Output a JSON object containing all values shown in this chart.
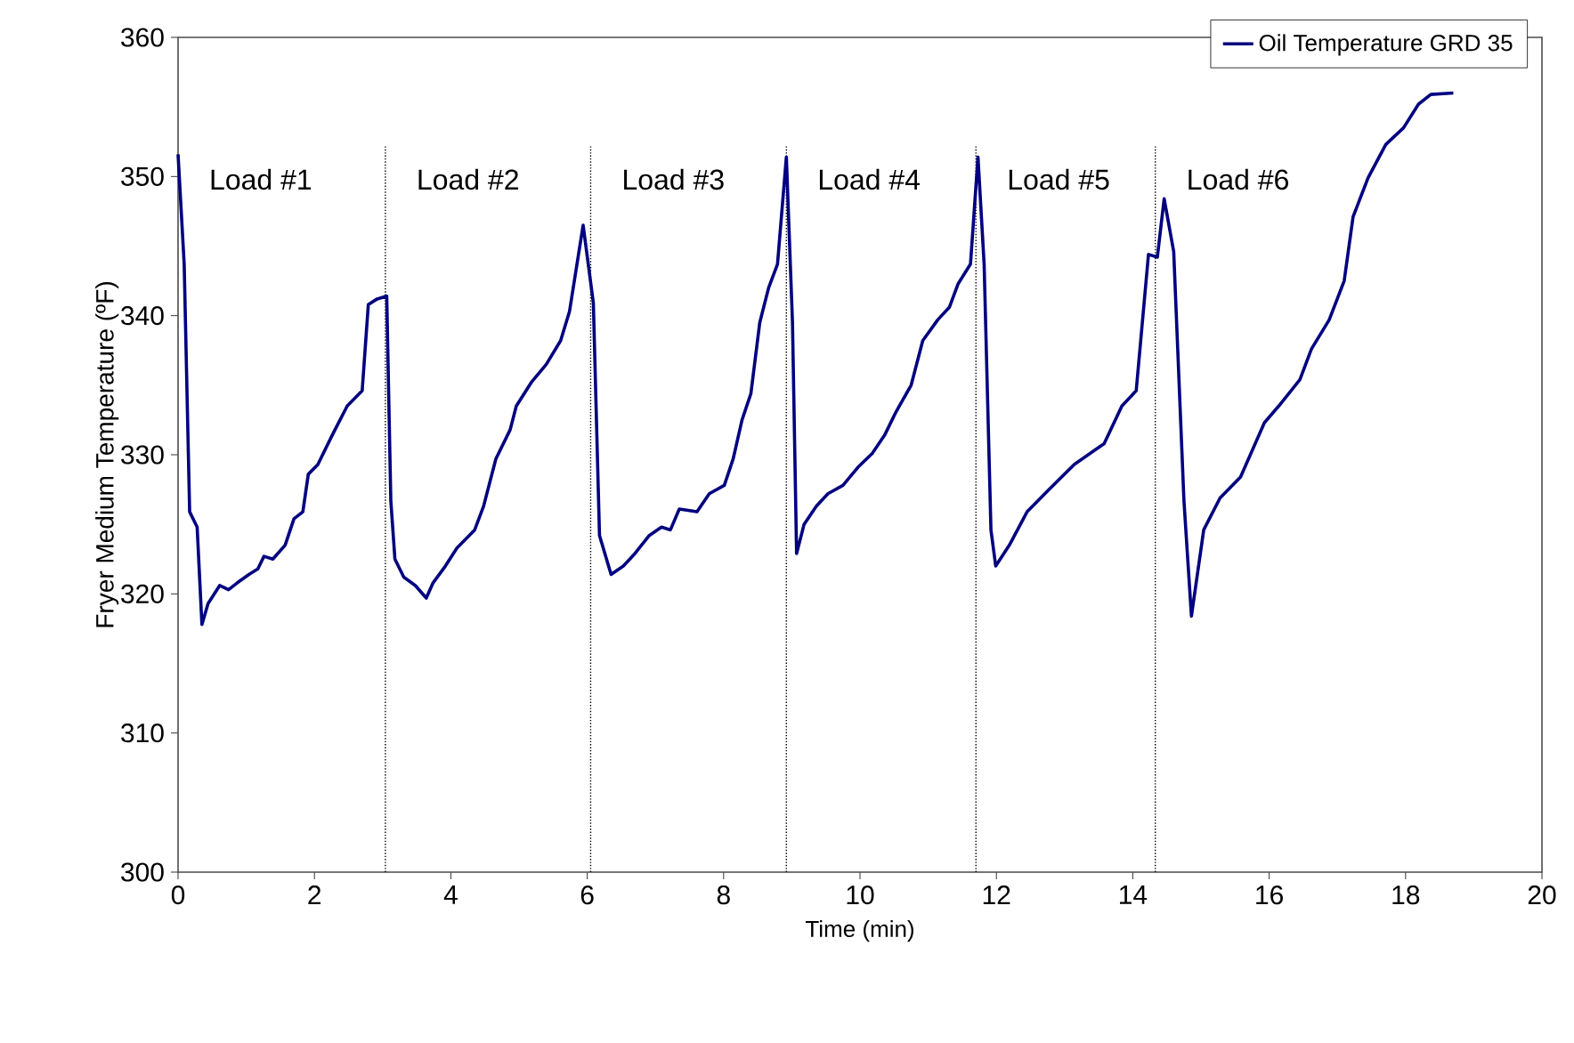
{
  "chart_data": {
    "type": "line",
    "xlabel": "Time (min)",
    "ylabel": "Fryer Medium Temperature (ºF)",
    "xlim": [
      0,
      20
    ],
    "xticks": [
      0,
      2,
      4,
      6,
      8,
      10,
      12,
      14,
      16,
      18,
      20
    ],
    "ylim": [
      300,
      360
    ],
    "yticks": [
      300,
      310,
      320,
      330,
      340,
      350,
      360
    ],
    "grid": false,
    "legend": "top right",
    "marker": "none",
    "line_style": "solid",
    "series": [
      {
        "name": "Oil Temperature GRD 35",
        "color": "#000080",
        "x": [
          0,
          0.09,
          0.17,
          0.28,
          0.35,
          0.44,
          0.61,
          0.74,
          0.87,
          1.04,
          1.17,
          1.26,
          1.39,
          1.57,
          1.7,
          1.83,
          1.91,
          2.05,
          2.26,
          2.48,
          2.7,
          2.79,
          2.92,
          3.06,
          3.12,
          3.18,
          3.31,
          3.48,
          3.64,
          3.74,
          3.92,
          4.09,
          4.35,
          4.48,
          4.66,
          4.87,
          4.96,
          5.18,
          5.4,
          5.61,
          5.74,
          5.94,
          6.09,
          6.18,
          6.35,
          6.53,
          6.7,
          6.91,
          7.09,
          7.22,
          7.35,
          7.61,
          7.79,
          8.01,
          8.14,
          8.27,
          8.4,
          8.53,
          8.66,
          8.79,
          8.92,
          9.01,
          9.07,
          9.18,
          9.36,
          9.53,
          9.75,
          9.97,
          10.18,
          10.36,
          10.53,
          10.75,
          10.92,
          11.14,
          11.31,
          11.44,
          11.62,
          11.73,
          11.82,
          11.92,
          11.99,
          12.19,
          12.45,
          12.75,
          13.14,
          13.58,
          13.84,
          14.05,
          14.23,
          14.36,
          14.46,
          14.6,
          14.75,
          14.86,
          15.04,
          15.28,
          15.58,
          15.93,
          16.14,
          16.45,
          16.62,
          16.88,
          17.1,
          17.23,
          17.45,
          17.71,
          17.97,
          18.19,
          18.37,
          18.7
        ],
        "values": [
          351.6,
          343.7,
          325.9,
          324.8,
          317.8,
          319.3,
          320.6,
          320.3,
          320.8,
          321.4,
          321.8,
          322.7,
          322.5,
          323.5,
          325.4,
          325.9,
          328.6,
          329.3,
          331.4,
          333.5,
          334.6,
          340.8,
          341.2,
          341.4,
          326.7,
          322.5,
          321.2,
          320.6,
          319.7,
          320.8,
          322.0,
          323.3,
          324.6,
          326.3,
          329.7,
          331.8,
          333.5,
          335.2,
          336.5,
          338.2,
          340.3,
          346.5,
          340.9,
          324.2,
          321.4,
          322.0,
          322.9,
          324.2,
          324.8,
          324.6,
          326.1,
          325.9,
          327.2,
          327.8,
          329.7,
          332.5,
          334.4,
          339.5,
          342.0,
          343.7,
          351.4,
          339.5,
          322.9,
          325.0,
          326.3,
          327.2,
          327.8,
          329.1,
          330.1,
          331.4,
          333.1,
          335.0,
          338.2,
          339.7,
          340.6,
          342.3,
          343.7,
          351.4,
          343.7,
          324.6,
          322.0,
          323.5,
          325.9,
          327.4,
          329.3,
          330.8,
          333.5,
          334.6,
          344.4,
          344.2,
          348.4,
          344.6,
          326.7,
          318.4,
          324.6,
          326.9,
          328.4,
          332.3,
          333.5,
          335.4,
          337.6,
          339.7,
          342.5,
          347.1,
          349.9,
          352.3,
          353.5,
          355.2,
          355.9,
          356.0
        ]
      }
    ],
    "ref_lines": [
      {
        "axis": "x",
        "value": 3.04,
        "color": "#000000",
        "line_style": "dotted"
      },
      {
        "axis": "x",
        "value": 6.05,
        "color": "#000000",
        "line_style": "dotted"
      },
      {
        "axis": "x",
        "value": 8.92,
        "color": "#000000",
        "line_style": "dotted"
      },
      {
        "axis": "x",
        "value": 11.7,
        "color": "#000000",
        "line_style": "dotted"
      },
      {
        "axis": "x",
        "value": 14.33,
        "color": "#000000",
        "line_style": "dotted"
      }
    ],
    "annotations": [
      "Load #1",
      "Load #2",
      "Load #3",
      "Load #4",
      "Load #5",
      "Load #6"
    ]
  }
}
